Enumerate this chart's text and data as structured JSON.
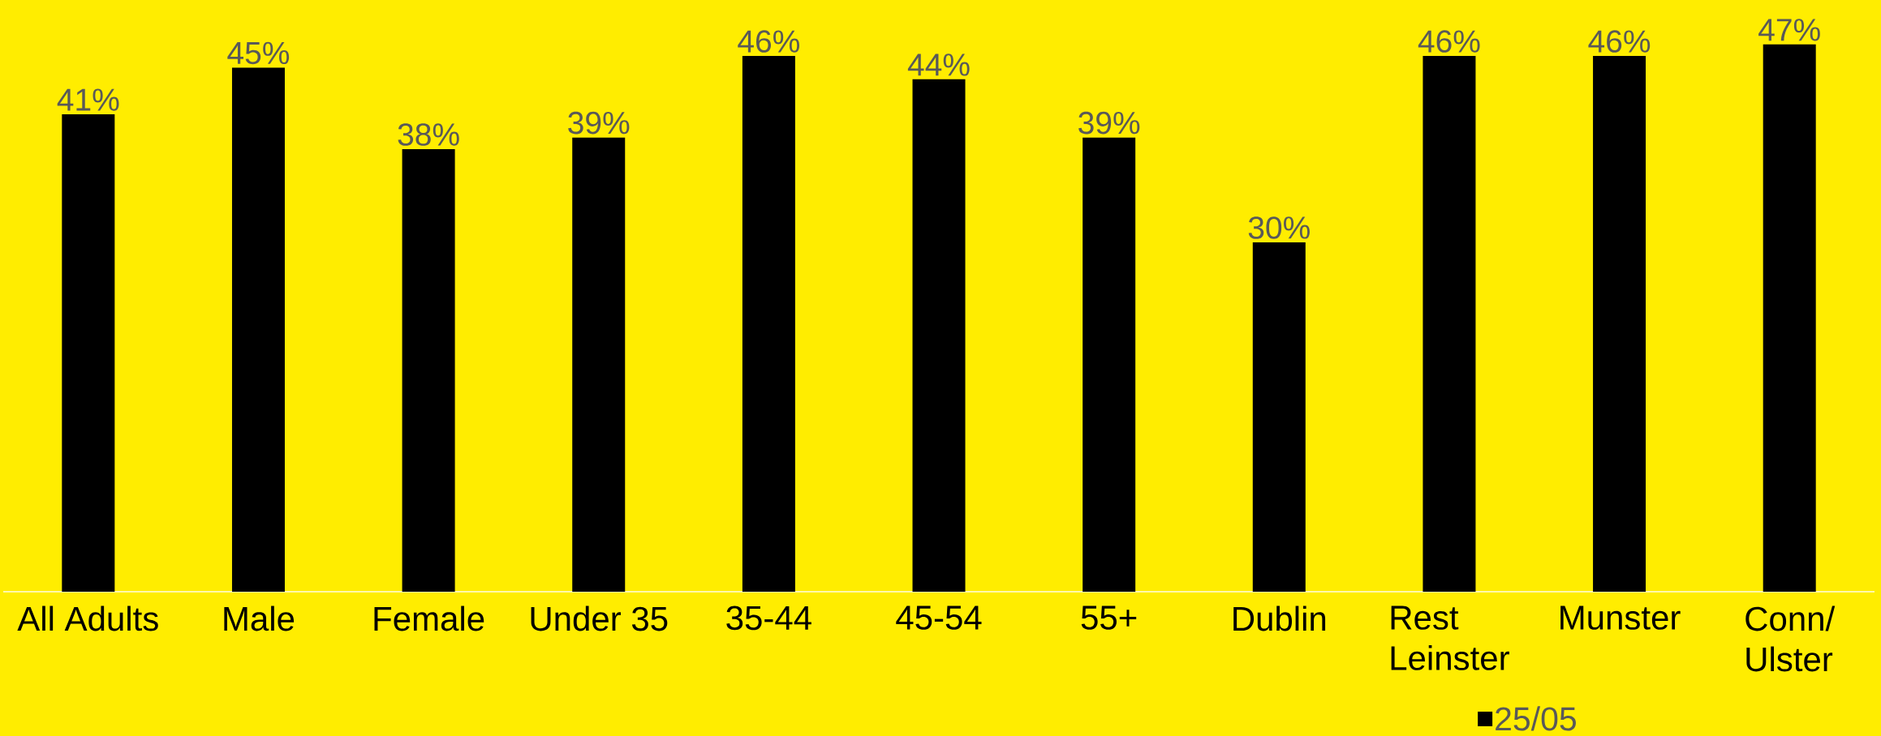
{
  "chart_data": {
    "type": "bar",
    "categories": [
      "All Adults",
      "Male",
      "Female",
      "Under 35",
      "35-44",
      "45-54",
      "55+",
      "Dublin",
      "Rest Leinster",
      "Munster",
      "Conn/ Ulster"
    ],
    "series": [
      {
        "name": "25/05",
        "color": "#000000",
        "values": [
          41,
          45,
          38,
          39,
          46,
          44,
          39,
          30,
          46,
          46,
          47
        ],
        "value_labels": [
          "41%",
          "45%",
          "38%",
          "39%",
          "46%",
          "44%",
          "39%",
          "30%",
          "46%",
          "46%",
          "47%"
        ]
      }
    ],
    "legend": "bottom",
    "grid": false
  }
}
